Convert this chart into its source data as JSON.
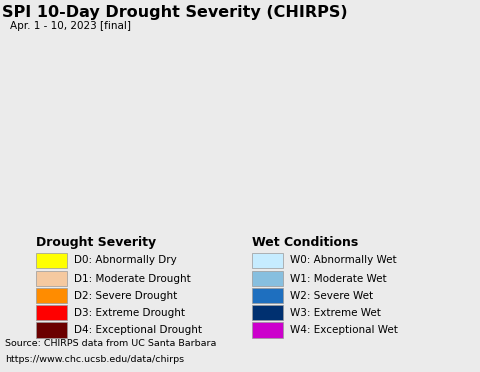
{
  "title": "SPI 10-Day Drought Severity (CHIRPS)",
  "subtitle": "Apr. 1 - 10, 2023 [final]",
  "source_line1": "Source: CHIRPS data from UC Santa Barbara",
  "source_line2": "https://www.chc.ucsb.edu/data/chirps",
  "legend_drought_title": "Drought Severity",
  "legend_wet_title": "Wet Conditions",
  "drought_labels": [
    "D0: Abnormally Dry",
    "D1: Moderate Drought",
    "D2: Severe Drought",
    "D3: Extreme Drought",
    "D4: Exceptional Drought"
  ],
  "drought_colors": [
    "#FFFF00",
    "#F5C9A0",
    "#FF8C00",
    "#FF0000",
    "#6B0000"
  ],
  "wet_labels": [
    "W0: Abnormally Wet",
    "W1: Moderate Wet",
    "W2: Severe Wet",
    "W3: Extreme Wet",
    "W4: Exceptional Wet"
  ],
  "wet_colors": [
    "#C6ECFF",
    "#87BFDF",
    "#1E6FBF",
    "#003070",
    "#CC00CC"
  ],
  "background_color": "#EBEBEB",
  "map_bg_color": "#B8EBF5",
  "land_color": "#E8E8E8",
  "fig_width": 4.8,
  "fig_height": 3.72,
  "dpi": 100,
  "title_fontsize": 11.5,
  "subtitle_fontsize": 7.5,
  "legend_title_fontsize": 9,
  "legend_item_fontsize": 7.5,
  "source_fontsize": 6.8
}
